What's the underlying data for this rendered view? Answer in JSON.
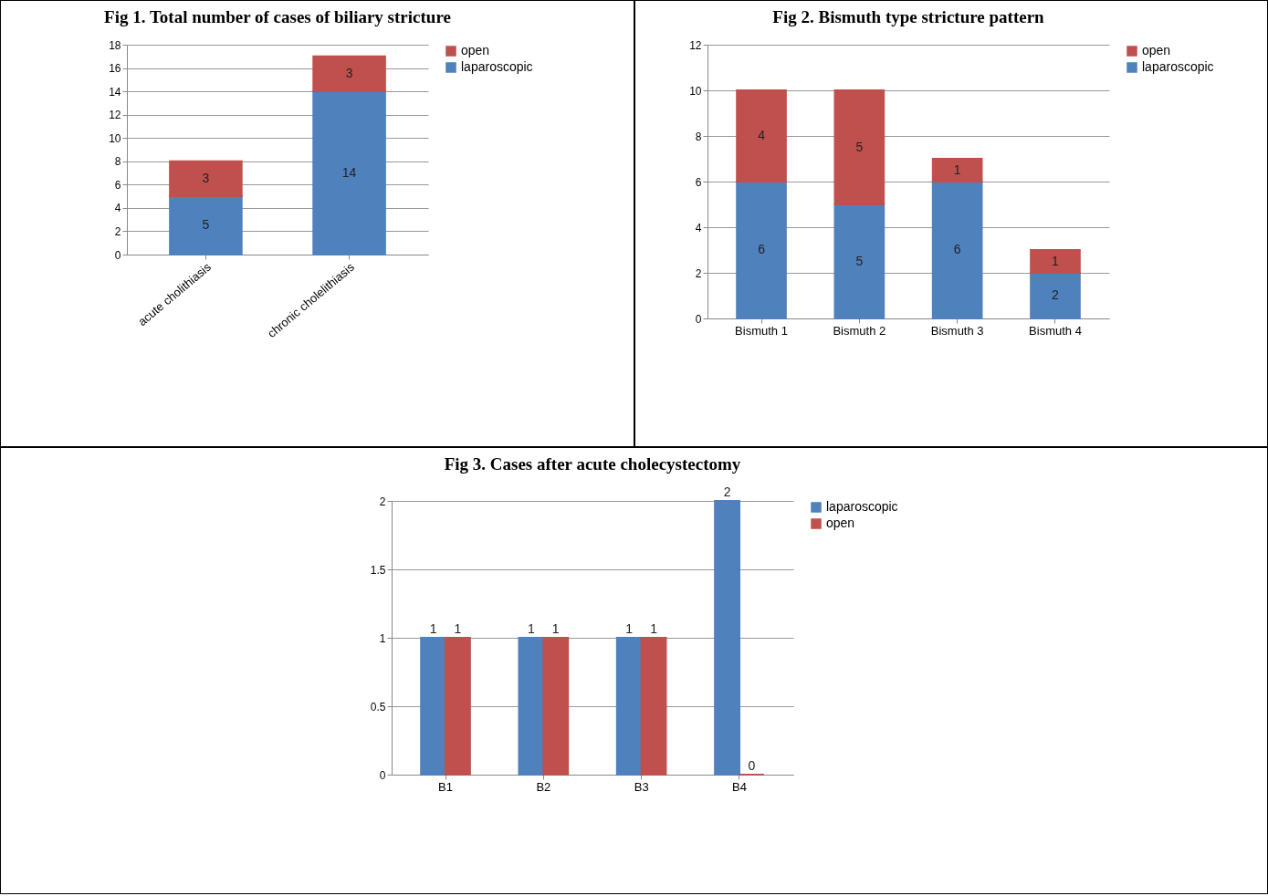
{
  "chart_data": [
    {
      "type": "bar",
      "title": "Fig 1.  Total number of cases of biliary stricture",
      "categories": [
        "acute cholithiasis",
        "chronic cholelithiasis"
      ],
      "stacked": true,
      "series": [
        {
          "name": "laparoscopic",
          "color": "#4f81bd",
          "values": [
            5,
            14
          ]
        },
        {
          "name": "open",
          "color": "#c0504d",
          "values": [
            3,
            3
          ]
        }
      ],
      "ylim": [
        0,
        18
      ],
      "yticks": [
        0,
        2,
        4,
        6,
        8,
        10,
        12,
        14,
        16,
        18
      ],
      "grid": "y",
      "legend": "right",
      "data_labels": true
    },
    {
      "type": "bar",
      "title": "Fig 2. Bismuth type stricture pattern",
      "categories": [
        "Bismuth 1",
        "Bismuth 2",
        "Bismuth 3",
        "Bismuth 4"
      ],
      "stacked": true,
      "series": [
        {
          "name": "laparoscopic",
          "color": "#4f81bd",
          "values": [
            6,
            5,
            6,
            2
          ]
        },
        {
          "name": "open",
          "color": "#c0504d",
          "values": [
            4,
            5,
            1,
            1
          ]
        }
      ],
      "ylim": [
        0,
        12
      ],
      "yticks": [
        0,
        2,
        4,
        6,
        8,
        10,
        12
      ],
      "grid": "y",
      "legend": "right",
      "data_labels": true
    },
    {
      "type": "bar",
      "title": "Fig 3. Cases after acute cholecystectomy",
      "categories": [
        "B1",
        "B2",
        "B3",
        "B4"
      ],
      "series": [
        {
          "name": "laparoscopic",
          "color": "#4f81bd",
          "values": [
            1,
            1,
            1,
            2
          ]
        },
        {
          "name": "open",
          "color": "#c0504d",
          "values": [
            1,
            1,
            1,
            0
          ]
        }
      ],
      "ylim": [
        0,
        2
      ],
      "yticks": [
        0,
        0.5,
        1,
        1.5,
        2
      ],
      "grid": "y",
      "legend": "right",
      "data_labels": true
    }
  ]
}
